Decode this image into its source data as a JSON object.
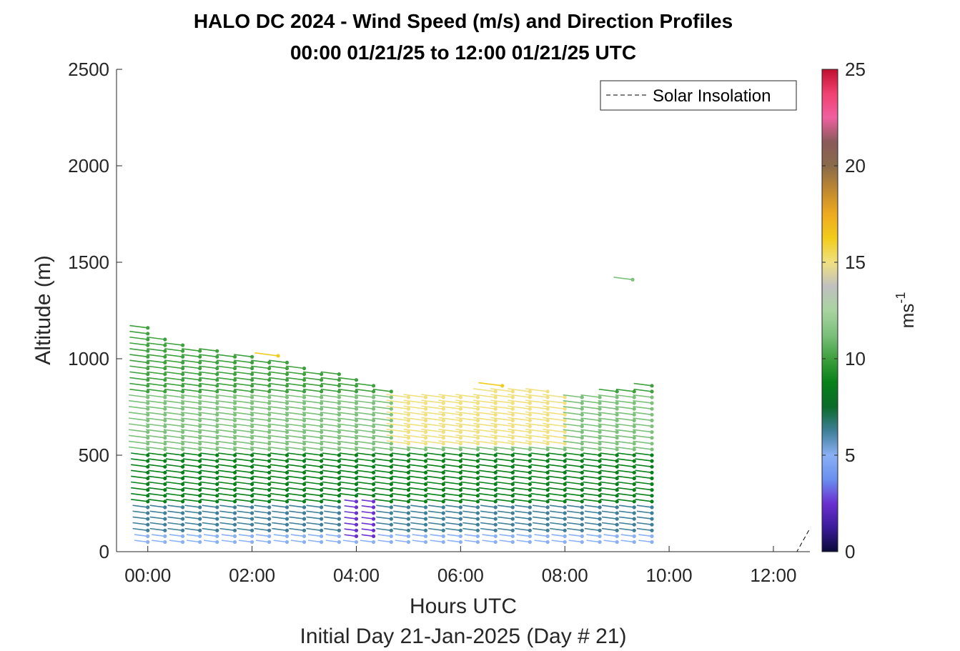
{
  "chart_data": {
    "type": "wind-barb-profile",
    "title": "HALO DC 2024 - Wind Speed (m/s) and Direction Profiles",
    "subtitle": "00:00 01/21/25 to 12:00 01/21/25  UTC",
    "xlabel": "Hours UTC",
    "xlabel2": "Initial Day 21-Jan-2025 (Day # 21)",
    "ylabel": "Altitude (m)",
    "xlim": [
      -0.6,
      12.7
    ],
    "ylim": [
      0,
      2500
    ],
    "x_ticks": [
      {
        "value": 0,
        "label": "00:00"
      },
      {
        "value": 2,
        "label": "02:00"
      },
      {
        "value": 4,
        "label": "04:00"
      },
      {
        "value": 6,
        "label": "06:00"
      },
      {
        "value": 8,
        "label": "08:00"
      },
      {
        "value": 10,
        "label": "10:00"
      },
      {
        "value": 12,
        "label": "12:00"
      }
    ],
    "y_ticks": [
      {
        "value": 0,
        "label": "0"
      },
      {
        "value": 500,
        "label": "500"
      },
      {
        "value": 1000,
        "label": "1000"
      },
      {
        "value": 1500,
        "label": "1500"
      },
      {
        "value": 2000,
        "label": "2000"
      },
      {
        "value": 2500,
        "label": "2500"
      }
    ],
    "colorbar": {
      "label": "ms",
      "label_sup": "-1",
      "range": [
        0,
        25
      ],
      "ticks": [
        {
          "value": 0,
          "label": "0"
        },
        {
          "value": 5,
          "label": "5"
        },
        {
          "value": 10,
          "label": "10"
        },
        {
          "value": 15,
          "label": "15"
        },
        {
          "value": 20,
          "label": "20"
        },
        {
          "value": 25,
          "label": "25"
        }
      ],
      "colors": [
        "#0a0a3a",
        "#3a1a9a",
        "#6a30d0",
        "#6a8ff0",
        "#8ab0f5",
        "#3f7f9a",
        "#0b6b2a",
        "#07801a",
        "#3ea03e",
        "#7cc07c",
        "#a8d4a0",
        "#c0c0c0",
        "#f0e080",
        "#f2cc1a",
        "#eeaa20",
        "#c08830",
        "#8a6a4a",
        "#8a5a5a",
        "#f060a0",
        "#f04070",
        "#c01030"
      ]
    },
    "legend": {
      "position": "top-right",
      "entries": [
        {
          "name": "Solar Insolation",
          "style": "dashed",
          "color": "#000000"
        }
      ]
    },
    "profile_times": [
      0.0,
      0.33,
      0.67,
      1.0,
      1.33,
      1.67,
      2.0,
      2.33,
      2.67,
      3.0,
      3.33,
      3.67,
      4.0,
      4.33,
      4.67,
      5.0,
      5.33,
      5.67,
      6.0,
      6.33,
      6.67,
      7.0,
      7.33,
      7.67,
      8.0,
      8.33,
      8.67,
      9.0,
      9.33,
      9.67
    ],
    "profile_top_altitudes": [
      1160,
      1120,
      1080,
      1060,
      1040,
      1020,
      1010,
      1000,
      990,
      970,
      940,
      930,
      900,
      870,
      850,
      820,
      810,
      800,
      800,
      820,
      840,
      850,
      840,
      830,
      820,
      810,
      800,
      830,
      850,
      860
    ],
    "altitude_step": 30,
    "speed_profile": [
      {
        "max_alt": 100,
        "speed": 4.5
      },
      {
        "max_alt": 250,
        "speed": 6.5
      },
      {
        "max_alt": 500,
        "speed": 8.5
      },
      {
        "max_alt": 800,
        "speed": 11.0
      },
      {
        "max_alt": 1200,
        "speed": 10.0
      }
    ],
    "fast_layer": {
      "time_range": [
        4.8,
        8.3
      ],
      "alt_range": [
        550,
        850
      ],
      "speed": 14.5
    },
    "slow_patch": {
      "time_range": [
        3.9,
        4.6
      ],
      "alt_range": [
        80,
        260
      ],
      "speed": 3.0
    },
    "wind_direction_deg": 290,
    "isolated_points": [
      {
        "time": 9.3,
        "alt": 1410,
        "speed": 11.0
      },
      {
        "time": 2.5,
        "alt": 1015,
        "speed": 16.0
      },
      {
        "time": 6.8,
        "alt": 860,
        "speed": 16.5
      }
    ],
    "solar_insolation": [
      [
        -0.6,
        0
      ],
      [
        12.45,
        0
      ],
      [
        12.7,
        120
      ]
    ]
  }
}
